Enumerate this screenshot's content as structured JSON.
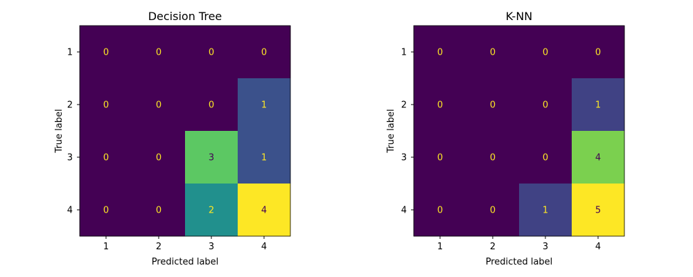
{
  "chart_data": [
    {
      "type": "heatmap",
      "title": "Decision Tree",
      "xlabel": "Predicted label",
      "ylabel": "True label",
      "x_categories": [
        "1",
        "2",
        "3",
        "4"
      ],
      "y_categories": [
        "1",
        "2",
        "3",
        "4"
      ],
      "values": [
        [
          0,
          0,
          0,
          0
        ],
        [
          0,
          0,
          0,
          1
        ],
        [
          0,
          0,
          3,
          1
        ],
        [
          0,
          0,
          2,
          4
        ]
      ],
      "colormap": "viridis",
      "colorbar": false,
      "grid": false
    },
    {
      "type": "heatmap",
      "title": "K-NN",
      "xlabel": "Predicted label",
      "ylabel": "True label",
      "x_categories": [
        "1",
        "2",
        "3",
        "4"
      ],
      "y_categories": [
        "1",
        "2",
        "3",
        "4"
      ],
      "values": [
        [
          0,
          0,
          0,
          0
        ],
        [
          0,
          0,
          0,
          1
        ],
        [
          0,
          0,
          0,
          4
        ],
        [
          0,
          0,
          1,
          5
        ]
      ],
      "colormap": "viridis",
      "colorbar": false,
      "grid": false
    }
  ]
}
